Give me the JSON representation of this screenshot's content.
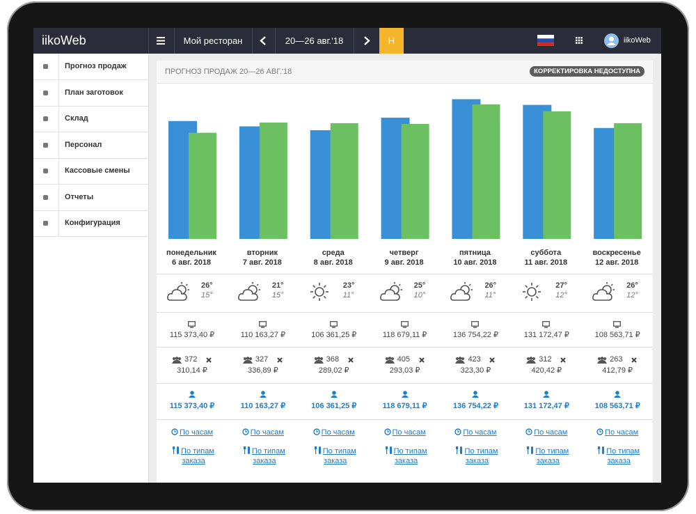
{
  "topbar": {
    "logo": "iikoWeb",
    "restaurant": "Мой ресторан",
    "period": "20—26 авг.'18",
    "badge": "Н",
    "user": "iikoWeb"
  },
  "sidebar": [
    "Прогноз продаж",
    "План заготовок",
    "Склад",
    "Персонал",
    "Кассовые смены",
    "Отчеты",
    "Конфигурация"
  ],
  "panel": {
    "title": "ПРОГНОЗ ПРОДАЖ 20—26 АВГ.'18",
    "status": "КОРРЕКТИРОВКА НЕДОСТУПНА"
  },
  "chart_data": {
    "type": "bar",
    "categories": [
      "понедельник",
      "вторник",
      "среда",
      "четверг",
      "пятница",
      "суббота",
      "воскресенье"
    ],
    "dates": [
      "6 авг. 2018",
      "7 авг. 2018",
      "8 авг. 2018",
      "9 авг. 2018",
      "10 авг. 2018",
      "11 авг. 2018",
      "12 авг. 2018"
    ],
    "series": [
      {
        "color": "#3a90d6",
        "values": [
          115373.4,
          110163.27,
          106361.25,
          118679.11,
          136754.22,
          131172.47,
          108563.71
        ]
      },
      {
        "color": "#6cc062",
        "values": [
          103900,
          113900,
          113300,
          112600,
          131700,
          124900,
          113300
        ]
      }
    ],
    "ylim": [
      0,
      150000
    ],
    "grid": false
  },
  "days": [
    {
      "icon": "cloud",
      "high": "26°",
      "low": "15°",
      "revenue": "115 373,40 ₽",
      "guests": "372",
      "avg_check": "310,14 ₽",
      "forecast": "115 373,40 ₽",
      "link_hours": "По часам",
      "link_types": "По типам заказа"
    },
    {
      "icon": "cloud",
      "high": "21°",
      "low": "15°",
      "revenue": "110 163,27 ₽",
      "guests": "327",
      "avg_check": "336,89 ₽",
      "forecast": "110 163,27 ₽",
      "link_hours": "По часам",
      "link_types": "По типам заказа"
    },
    {
      "icon": "sun",
      "high": "23°",
      "low": "11°",
      "revenue": "106 361,25 ₽",
      "guests": "368",
      "avg_check": "289,02 ₽",
      "forecast": "106 361,25 ₽",
      "link_hours": "По часам",
      "link_types": "По типам заказа"
    },
    {
      "icon": "cloud",
      "high": "25°",
      "low": "10°",
      "revenue": "118 679,11 ₽",
      "guests": "405",
      "avg_check": "293,03 ₽",
      "forecast": "118 679,11 ₽",
      "link_hours": "По часам",
      "link_types": "По типам заказа"
    },
    {
      "icon": "cloud",
      "high": "26°",
      "low": "11°",
      "revenue": "136 754,22 ₽",
      "guests": "423",
      "avg_check": "323,30 ₽",
      "forecast": "136 754,22 ₽",
      "link_hours": "По часам",
      "link_types": "По типам заказа"
    },
    {
      "icon": "sun",
      "high": "27°",
      "low": "12°",
      "revenue": "131 172,47 ₽",
      "guests": "312",
      "avg_check": "420,42 ₽",
      "forecast": "131 172,47 ₽",
      "link_hours": "По часам",
      "link_types": "По типам заказа"
    },
    {
      "icon": "cloud",
      "high": "26°",
      "low": "12°",
      "revenue": "108 563,71 ₽",
      "guests": "263",
      "avg_check": "412,79 ₽",
      "forecast": "108 563,71 ₽",
      "link_hours": "По часам",
      "link_types": "По типам заказа"
    }
  ]
}
